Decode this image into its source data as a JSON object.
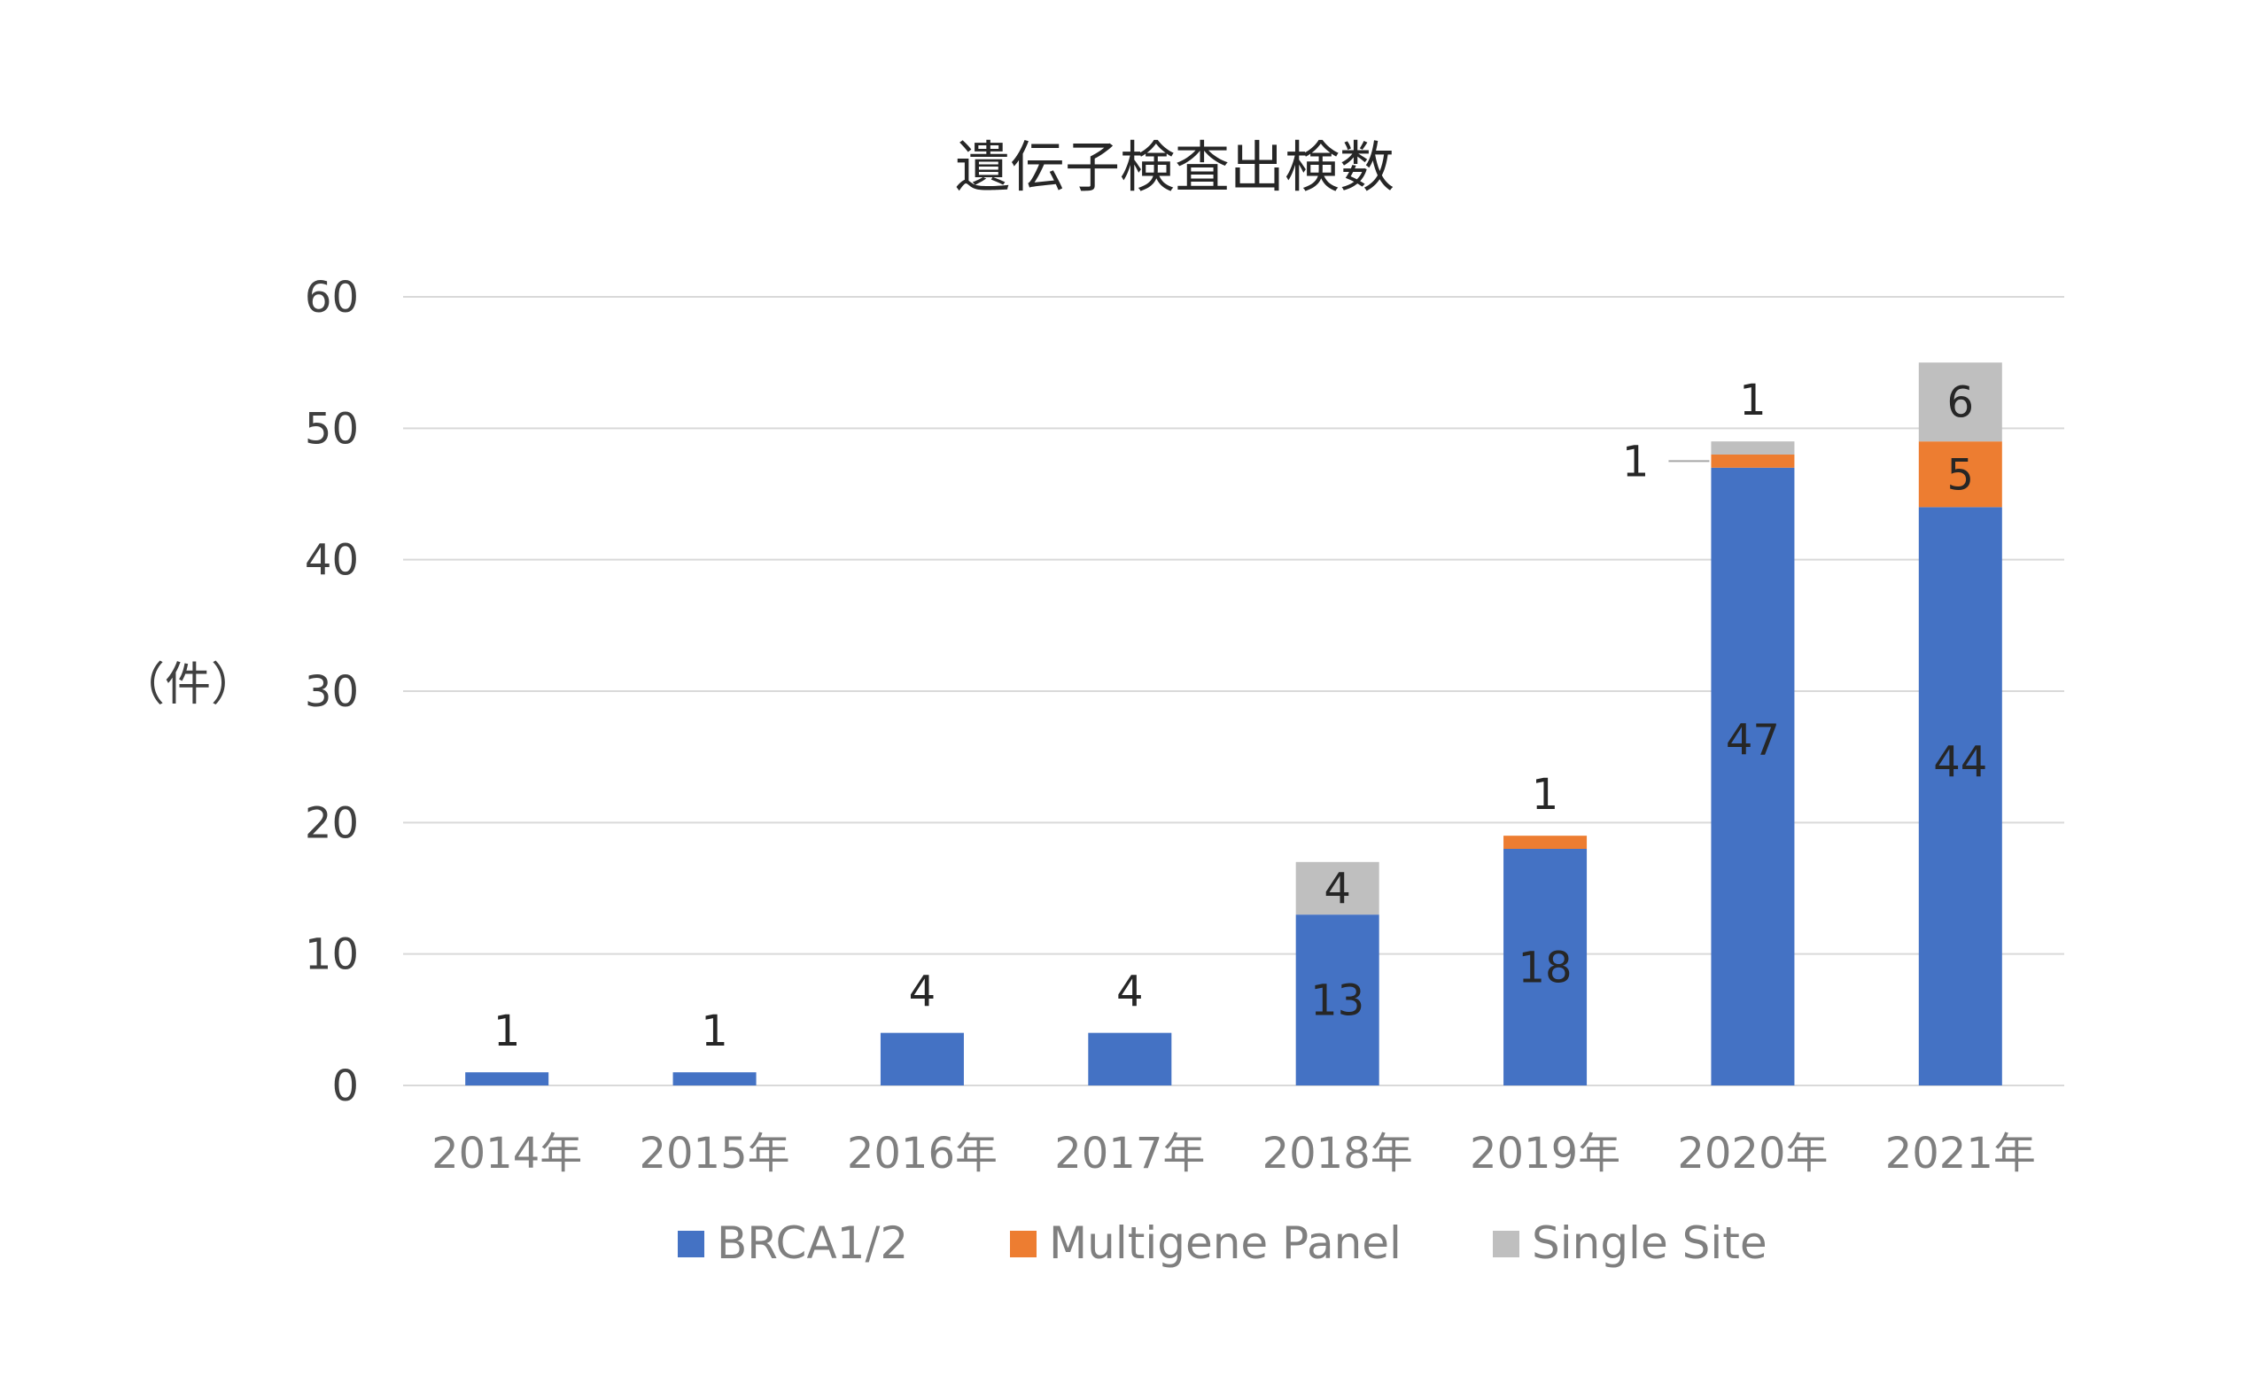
{
  "chart_data": {
    "type": "bar",
    "stacked": true,
    "title": "遺伝子検査出検数",
    "ylabel": "（件）",
    "xlabel": "",
    "ylim": [
      0,
      60
    ],
    "yticks": [
      0,
      10,
      20,
      30,
      40,
      50,
      60
    ],
    "grid": true,
    "legend_position": "bottom",
    "categories": [
      "2014年",
      "2015年",
      "2016年",
      "2017年",
      "2018年",
      "2019年",
      "2020年",
      "2021年"
    ],
    "series": [
      {
        "name": "BRCA1/2",
        "color": "#4472c4",
        "values": [
          1,
          1,
          4,
          4,
          13,
          18,
          47,
          44
        ],
        "labels": [
          "1",
          "1",
          "4",
          "4",
          "13",
          "18",
          "47",
          "44"
        ]
      },
      {
        "name": "Multigene Panel",
        "color": "#ed7d31",
        "values": [
          0,
          0,
          0,
          0,
          0,
          1,
          1,
          5
        ],
        "labels": [
          "",
          "",
          "",
          "",
          "",
          "1",
          "1",
          "5"
        ]
      },
      {
        "name": "Single Site",
        "color": "#bfbfbf",
        "values": [
          0,
          0,
          0,
          0,
          4,
          0,
          1,
          6
        ],
        "labels": [
          "",
          "",
          "",
          "",
          "4",
          "",
          "1",
          "6"
        ]
      }
    ]
  }
}
